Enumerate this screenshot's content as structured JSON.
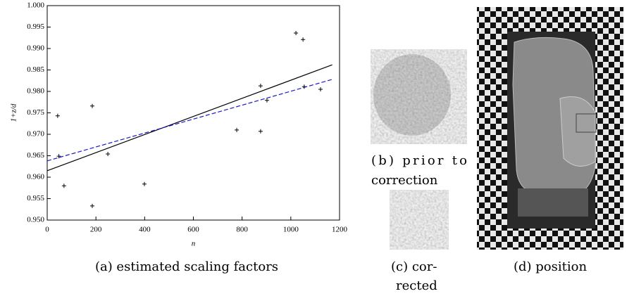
{
  "chart_data": {
    "type": "scatter",
    "xlabel": "n",
    "ylabel": "1+z/d",
    "xlim": [
      0,
      1200
    ],
    "ylim": [
      0.95,
      1.0
    ],
    "xticks": [
      0,
      200,
      400,
      600,
      800,
      1000,
      1200
    ],
    "yticks": [
      {
        "value": 0.95,
        "label": "0.950"
      },
      {
        "value": 0.955,
        "label": "0.955"
      },
      {
        "value": 0.96,
        "label": "0.960"
      },
      {
        "value": 0.965,
        "label": "0.965"
      },
      {
        "value": 0.97,
        "label": "0.970"
      },
      {
        "value": 0.975,
        "label": "0.975"
      },
      {
        "value": 0.98,
        "label": "0.980"
      },
      {
        "value": 0.985,
        "label": "0.985"
      },
      {
        "value": 0.99,
        "label": "0.990"
      },
      {
        "value": 0.995,
        "label": "0.995"
      },
      {
        "value": 1.0,
        "label": "1.000"
      }
    ],
    "series": [
      {
        "marker": "+",
        "color": "#000000",
        "x": [
          43,
          48,
          69,
          185,
          185,
          249,
          399,
          778,
          876,
          876,
          902,
          1021,
          1050,
          1055,
          1122
        ],
        "values": [
          0.9743,
          0.9649,
          0.958,
          0.9766,
          0.9533,
          0.9654,
          0.9584,
          0.971,
          0.9813,
          0.9707,
          0.9779,
          0.9936,
          0.9921,
          0.9811,
          0.9805
        ]
      },
      {
        "color": "#000000",
        "dash": false,
        "x": [
          0,
          1170
        ],
        "values": [
          0.9615,
          0.9862
        ]
      },
      {
        "color": "#1a1acc",
        "dash": true,
        "x": [
          0,
          1170
        ],
        "values": [
          0.9638,
          0.9828
        ]
      }
    ]
  },
  "captions": {
    "a": "(a) estimated scaling factors",
    "b": [
      "(b) prior to",
      "correction"
    ],
    "c": [
      "(c) cor-",
      "rected"
    ],
    "d": "(d) position"
  }
}
